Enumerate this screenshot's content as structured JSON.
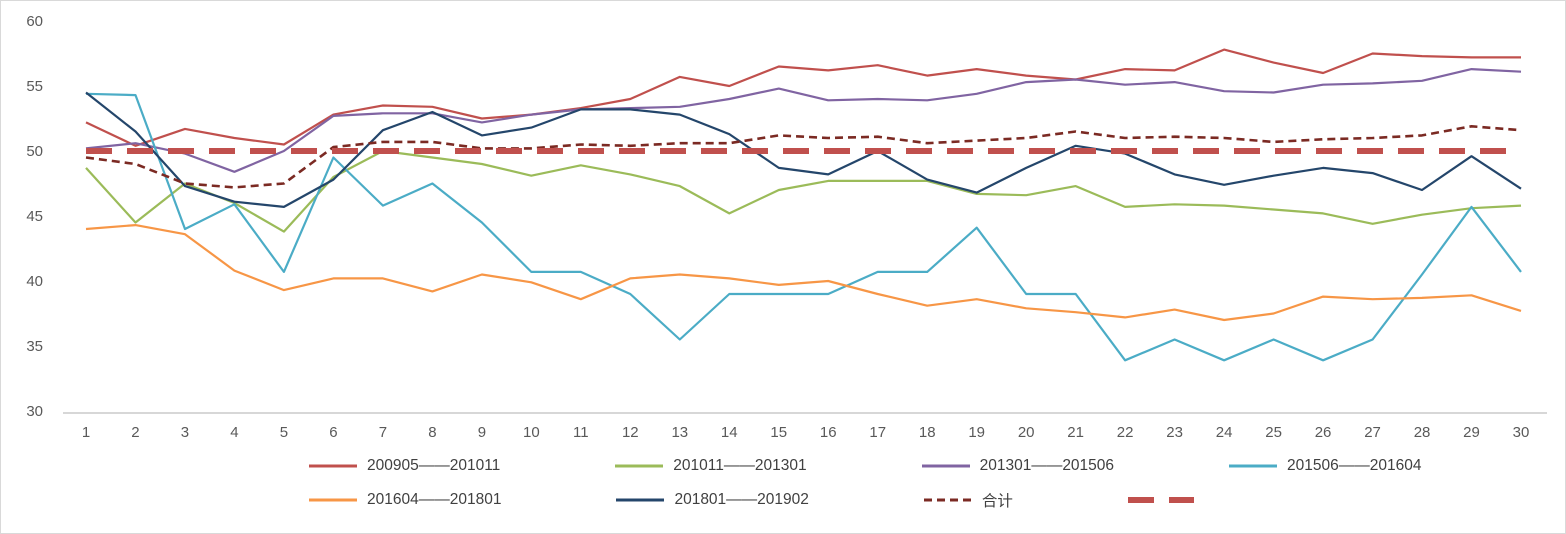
{
  "chart_data": {
    "type": "line",
    "title": "",
    "xlabel": "",
    "ylabel": "",
    "x": [
      1,
      2,
      3,
      4,
      5,
      6,
      7,
      8,
      9,
      10,
      11,
      12,
      13,
      14,
      15,
      16,
      17,
      18,
      19,
      20,
      21,
      22,
      23,
      24,
      25,
      26,
      27,
      28,
      29,
      30
    ],
    "ylim": [
      30,
      60
    ],
    "yticks": [
      30,
      35,
      40,
      45,
      50,
      55,
      60
    ],
    "grid": false,
    "legend_position": "bottom",
    "axis_color": "#bfbfbf",
    "tick_label_color": "#595959",
    "series": [
      {
        "name": "200905——201011",
        "color": "#C0504D",
        "dash": "",
        "width": 2.2,
        "values": [
          52.2,
          50.4,
          51.7,
          51.0,
          50.5,
          52.8,
          53.5,
          53.4,
          52.5,
          52.8,
          53.3,
          54.0,
          55.7,
          55.0,
          56.5,
          56.2,
          56.6,
          55.8,
          56.3,
          55.8,
          55.5,
          56.3,
          56.2,
          57.8,
          56.8,
          56.0,
          57.5,
          57.3,
          57.2,
          57.2
        ]
      },
      {
        "name": "201011——201301",
        "color": "#9BBB59",
        "dash": "",
        "width": 2.2,
        "values": [
          48.7,
          44.5,
          47.5,
          46.0,
          43.8,
          48.0,
          50.0,
          49.5,
          49.0,
          48.1,
          48.9,
          48.2,
          47.3,
          45.2,
          47.0,
          47.7,
          47.7,
          47.7,
          46.7,
          46.6,
          47.3,
          45.7,
          45.9,
          45.8,
          45.5,
          45.2,
          44.4,
          45.1,
          45.6,
          45.8
        ]
      },
      {
        "name": "201301——201506",
        "color": "#8064A2",
        "dash": "",
        "width": 2.2,
        "values": [
          50.2,
          50.6,
          49.8,
          48.4,
          50.0,
          52.7,
          52.9,
          52.9,
          52.2,
          52.8,
          53.2,
          53.3,
          53.4,
          54.0,
          54.8,
          53.9,
          54.0,
          53.9,
          54.4,
          55.3,
          55.5,
          55.1,
          55.3,
          54.6,
          54.5,
          55.1,
          55.2,
          55.4,
          56.3,
          56.1
        ]
      },
      {
        "name": "201506——201604",
        "color": "#4BACC6",
        "dash": "",
        "width": 2.2,
        "values": [
          54.4,
          54.3,
          44.0,
          45.9,
          40.7,
          49.5,
          45.8,
          47.5,
          44.5,
          40.7,
          40.7,
          39.0,
          35.5,
          39.0,
          39.0,
          39.0,
          40.7,
          40.7,
          44.1,
          39.0,
          39.0,
          33.9,
          35.5,
          33.9,
          35.5,
          33.9,
          35.5,
          40.5,
          45.7,
          40.7
        ]
      },
      {
        "name": "201604——201801",
        "color": "#F79646",
        "dash": "",
        "width": 2.2,
        "values": [
          44.0,
          44.3,
          43.6,
          40.8,
          39.3,
          40.2,
          40.2,
          39.2,
          40.5,
          39.9,
          38.6,
          40.2,
          40.5,
          40.2,
          39.7,
          40.0,
          39.0,
          38.1,
          38.6,
          37.9,
          37.6,
          37.2,
          37.8,
          37.0,
          37.5,
          38.8,
          38.6,
          38.7,
          38.9,
          37.7
        ]
      },
      {
        "name": "201801——201902",
        "color": "#24466B",
        "dash": "",
        "width": 2.2,
        "values": [
          54.5,
          51.5,
          47.3,
          46.1,
          45.7,
          47.8,
          51.6,
          53.0,
          51.2,
          51.8,
          53.2,
          53.2,
          52.8,
          51.3,
          48.7,
          48.2,
          50.0,
          47.8,
          46.8,
          48.7,
          50.4,
          49.8,
          48.2,
          47.4,
          48.1,
          48.7,
          48.3,
          47.0,
          49.6,
          47.1
        ]
      },
      {
        "name": "合计",
        "color": "#7B2A23",
        "dash": "8 5",
        "width": 2.6,
        "values": [
          49.5,
          49.0,
          47.5,
          47.2,
          47.5,
          50.3,
          50.7,
          50.7,
          50.2,
          50.2,
          50.5,
          50.4,
          50.6,
          50.6,
          51.2,
          51.0,
          51.1,
          50.6,
          50.8,
          51.0,
          51.5,
          51.0,
          51.1,
          51.0,
          50.7,
          50.9,
          51.0,
          51.2,
          51.9,
          51.6
        ]
      },
      {
        "name": "",
        "color": "#C0504D",
        "dash": "26 15",
        "width": 6,
        "values": [
          50,
          50,
          50,
          50,
          50,
          50,
          50,
          50,
          50,
          50,
          50,
          50,
          50,
          50,
          50,
          50,
          50,
          50,
          50,
          50,
          50,
          50,
          50,
          50,
          50,
          50,
          50,
          50,
          50,
          50
        ]
      }
    ]
  }
}
